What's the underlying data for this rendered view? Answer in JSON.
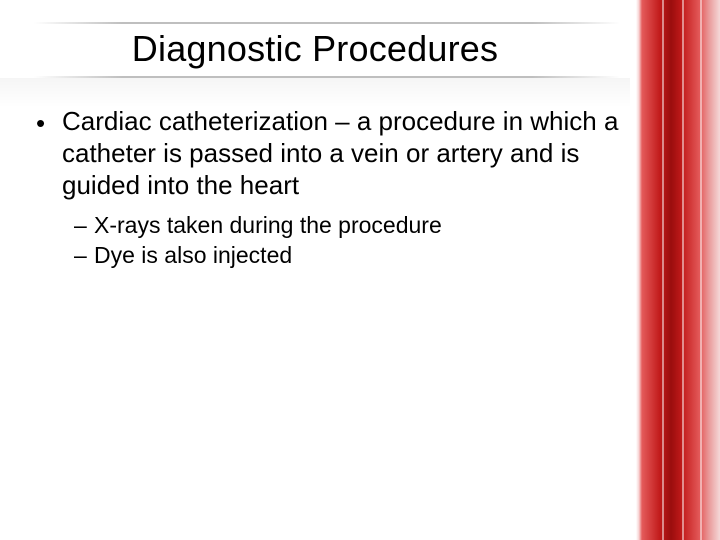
{
  "title": "Diagnostic Procedures",
  "bullets": {
    "level1": [
      {
        "text": "Cardiac catheterization – a procedure in which a catheter is passed into a vein or artery and is guided into the heart",
        "level2": [
          {
            "text": "X-rays taken during the procedure"
          },
          {
            "text": "Dye is also injected"
          }
        ]
      }
    ]
  },
  "styling": {
    "slide_width": 720,
    "slide_height": 540,
    "background_color": "#ffffff",
    "title_fontsize": 36,
    "title_color": "#000000",
    "body_fontsize_l1": 26,
    "body_fontsize_l2": 23,
    "body_color": "#000000",
    "rule_color": "#bfbfbf",
    "stripe_colors": [
      "#f5d8d8",
      "#eaa0a0",
      "#e45b5b",
      "#c11a1a",
      "#9a0d0d"
    ],
    "l1_marker": "•",
    "l2_marker": "–"
  }
}
